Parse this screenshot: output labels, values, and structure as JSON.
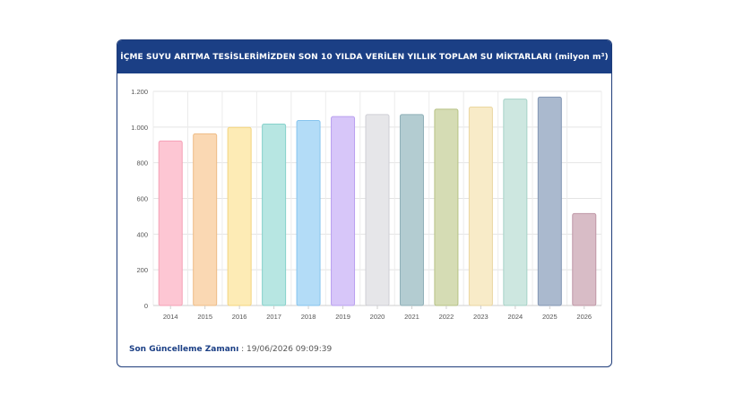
{
  "header": {
    "title": "İÇME SUYU ARITMA TESİSLERİMİZDEN SON 10 YILDA VERİLEN YILLIK TOPLAM SU MİKTARLARI (milyon m³)"
  },
  "footer": {
    "label": "Son Güncelleme Zamanı",
    "separator": " : ",
    "value": "19/06/2026 09:09:39"
  },
  "chart_data": {
    "type": "bar",
    "title": "",
    "xlabel": "",
    "ylabel": "",
    "categories": [
      "2014",
      "2015",
      "2016",
      "2017",
      "2018",
      "2019",
      "2020",
      "2021",
      "2022",
      "2023",
      "2024",
      "2025",
      "2026"
    ],
    "values": [
      922,
      962,
      998,
      1017,
      1037,
      1059,
      1070,
      1070,
      1100,
      1112,
      1157,
      1168,
      515
    ],
    "ylim": [
      0,
      1200
    ],
    "yticks": [
      0,
      200,
      400,
      600,
      800,
      1000,
      1200
    ],
    "ytick_labels": [
      "0",
      "200",
      "400",
      "600",
      "800",
      "1.000",
      "1.200"
    ],
    "grid": true,
    "colors": [
      "#fdc6d3",
      "#fad8b3",
      "#fdebb5",
      "#b7e6e2",
      "#b3dcf7",
      "#d7c6f9",
      "#e6e6e9",
      "#b3ccd1",
      "#d5dcb4",
      "#f8ebc8",
      "#cde7e0",
      "#aab9ce",
      "#d8bcc6"
    ],
    "stroke_colors": [
      "#f5a0b6",
      "#eebc86",
      "#f3d47e",
      "#86d1cb",
      "#86c4ee",
      "#b9a0ef",
      "#cfcfd5",
      "#8fb0b8",
      "#b6c285",
      "#ead6a0",
      "#a6d3c7",
      "#8296b4",
      "#bf97a6"
    ]
  }
}
